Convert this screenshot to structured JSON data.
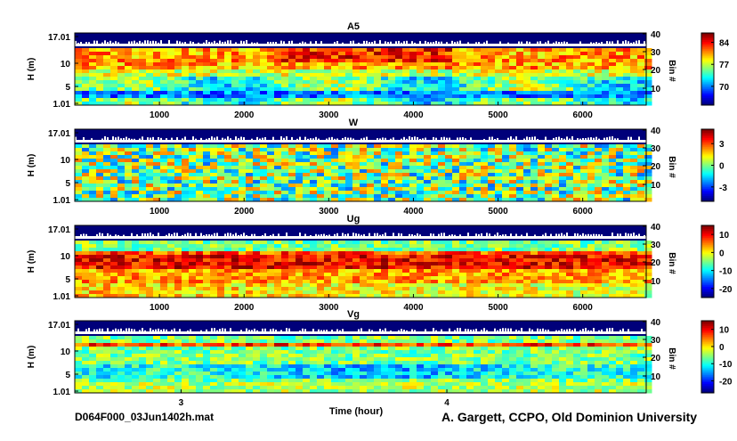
{
  "chart_data": [
    {
      "type": "heatmap",
      "title": "A5",
      "ylabel": "H (m)",
      "y2label": "Bin #",
      "yticks": [
        "17.01",
        "10",
        "5",
        "1.01"
      ],
      "y2ticks": [
        "40",
        "30",
        "20",
        "10"
      ],
      "xticks": [
        "1000",
        "2000",
        "3000",
        "4000",
        "5000",
        "6000"
      ],
      "xlim": [
        0,
        6750
      ],
      "colorbar_ticks": [
        "84",
        "77",
        "70"
      ],
      "clim": [
        64,
        87
      ]
    },
    {
      "type": "heatmap",
      "title": "W",
      "ylabel": "H (m)",
      "y2label": "Bin #",
      "yticks": [
        "17.01",
        "10",
        "5",
        "1.01"
      ],
      "y2ticks": [
        "40",
        "30",
        "20",
        "10"
      ],
      "xticks": [
        "1000",
        "2000",
        "3000",
        "4000",
        "5000",
        "6000"
      ],
      "xlim": [
        0,
        6750
      ],
      "colorbar_ticks": [
        "3",
        "0",
        "-3"
      ],
      "clim": [
        -5,
        5
      ]
    },
    {
      "type": "heatmap",
      "title": "Ug",
      "ylabel": "H (m)",
      "y2label": "Bin #",
      "yticks": [
        "17.01",
        "10",
        "5",
        "1.01"
      ],
      "y2ticks": [
        "40",
        "30",
        "20",
        "10"
      ],
      "xticks": [
        "1000",
        "2000",
        "3000",
        "4000",
        "5000",
        "6000"
      ],
      "xlim": [
        0,
        6750
      ],
      "colorbar_ticks": [
        "10",
        "0",
        "-10",
        "-20"
      ],
      "clim": [
        -25,
        15
      ]
    },
    {
      "type": "heatmap",
      "title": "Vg",
      "ylabel": "H (m)",
      "y2label": "Bin #",
      "yticks": [
        "17.01",
        "10",
        "5",
        "1.01"
      ],
      "y2ticks": [
        "40",
        "30",
        "20",
        "10"
      ],
      "xticks": [
        "3",
        "4"
      ],
      "xlabel": "Time (hour)",
      "xlim": [
        2.6,
        4.75
      ],
      "colorbar_ticks": [
        "10",
        "0",
        "-10",
        "-20"
      ],
      "clim": [
        -27,
        15
      ]
    }
  ],
  "footer": {
    "filename": "D064F000_03Jun1402h.mat",
    "credit": "A. Gargett, CCPO, Old Dominion University"
  }
}
